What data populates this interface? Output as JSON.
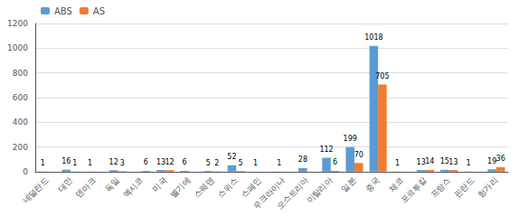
{
  "chart_data": {
    "type": "bar",
    "categories": [
      "네덜란드",
      "대만",
      "덴마크",
      "독일",
      "멕시코",
      "미국",
      "벨기에",
      "스웨덴",
      "스위스",
      "스페인",
      "우크라이나",
      "오스트리아",
      "이탈리아",
      "일본",
      "중국",
      "체코",
      "포르투칼",
      "프랑스",
      "핀란드",
      "헝가리"
    ],
    "series": [
      {
        "name": "ABS",
        "color": "#5B9BD5",
        "values": [
          1,
          16,
          1,
          12,
          0,
          13,
          6,
          5,
          52,
          1,
          1,
          28,
          112,
          199,
          1018,
          1,
          13,
          15,
          1,
          19
        ]
      },
      {
        "name": "AS",
        "color": "#ED7D31",
        "values": [
          0,
          1,
          0,
          3,
          6,
          12,
          0,
          2,
          5,
          0,
          0,
          0,
          6,
          70,
          705,
          0,
          14,
          13,
          0,
          36
        ]
      }
    ],
    "ylim": [
      0,
      1200
    ],
    "yticks": [
      0,
      200,
      400,
      600,
      800,
      1000,
      1200
    ],
    "grid": true,
    "legend": "upper left",
    "data_labels": true
  }
}
